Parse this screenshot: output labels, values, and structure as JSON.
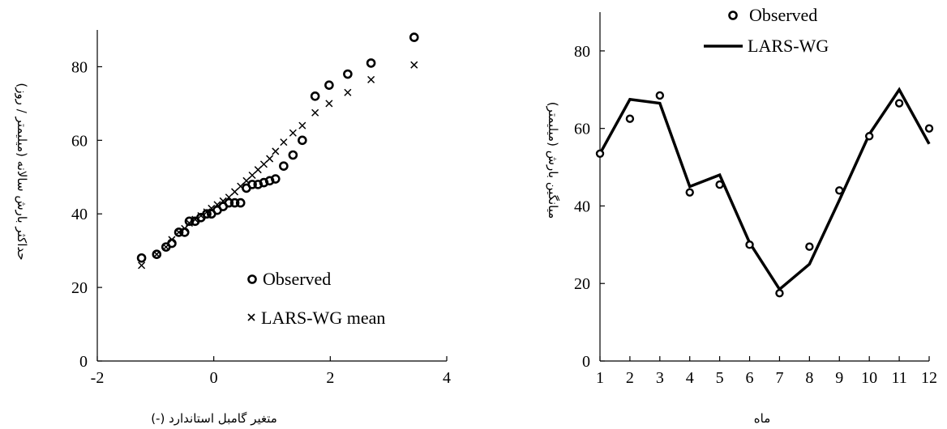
{
  "chart_data": [
    {
      "type": "scatter",
      "title": "",
      "xlabel": "متغیر گامبل استاندارد (-)",
      "ylabel": "حداکثر بارش سالانه (میلیمتر / روز)",
      "xlim": [
        -2,
        4
      ],
      "ylim": [
        0,
        90
      ],
      "xticks": [
        -2,
        0,
        2,
        4
      ],
      "yticks": [
        0,
        20,
        40,
        60,
        80
      ],
      "xtick_labels": [
        "-2",
        "0",
        "2",
        "4"
      ],
      "ytick_labels": [
        "0",
        "20",
        "40",
        "60",
        "80"
      ],
      "grid": false,
      "legend_position": "bottom-right",
      "series": [
        {
          "name": "Observed",
          "marker": "circle",
          "x": [
            -1.24,
            -0.98,
            -0.82,
            -0.72,
            -0.6,
            -0.5,
            -0.42,
            -0.32,
            -0.22,
            -0.12,
            -0.04,
            0.06,
            0.16,
            0.26,
            0.36,
            0.46,
            0.56,
            0.66,
            0.76,
            0.86,
            0.96,
            1.06,
            1.2,
            1.36,
            1.52,
            1.74,
            1.98,
            2.3,
            2.7,
            3.44
          ],
          "y": [
            28,
            29,
            31,
            32,
            35,
            35,
            38,
            38,
            39,
            40,
            40,
            41,
            42,
            43,
            43,
            43,
            47,
            48,
            48,
            48.5,
            49,
            49.5,
            53,
            56,
            60,
            72,
            75,
            78,
            81,
            88
          ]
        },
        {
          "name": "LARS-WG mean",
          "marker": "x",
          "x": [
            -1.24,
            -0.98,
            -0.82,
            -0.72,
            -0.6,
            -0.5,
            -0.42,
            -0.32,
            -0.22,
            -0.12,
            -0.04,
            0.06,
            0.16,
            0.26,
            0.36,
            0.46,
            0.56,
            0.66,
            0.76,
            0.86,
            0.96,
            1.06,
            1.2,
            1.36,
            1.52,
            1.74,
            1.98,
            2.3,
            2.7,
            3.44
          ],
          "y": [
            26,
            29,
            31,
            33,
            35,
            36,
            37.5,
            38.5,
            39.5,
            40.5,
            41.5,
            42.5,
            43.5,
            44.5,
            46,
            47.5,
            49,
            50.5,
            52,
            53.5,
            55,
            57,
            59.5,
            62,
            64,
            67.5,
            70,
            73,
            76.5,
            80.5
          ]
        }
      ]
    },
    {
      "type": "line",
      "title": "",
      "xlabel": "ماه",
      "ylabel": "میانگین بارش (میلیمتر)",
      "xlim": [
        1,
        12
      ],
      "ylim": [
        0,
        90
      ],
      "xticks": [
        1,
        2,
        3,
        4,
        5,
        6,
        7,
        8,
        9,
        10,
        11,
        12
      ],
      "yticks": [
        0,
        20,
        40,
        60,
        80
      ],
      "xtick_labels": [
        "1",
        "2",
        "3",
        "4",
        "5",
        "6",
        "7",
        "8",
        "9",
        "10",
        "11",
        "12"
      ],
      "ytick_labels": [
        "0",
        "20",
        "40",
        "60",
        "80"
      ],
      "grid": false,
      "legend_position": "top-left",
      "categories": [
        1,
        2,
        3,
        4,
        5,
        6,
        7,
        8,
        9,
        10,
        11,
        12
      ],
      "series": [
        {
          "name": "Observed",
          "marker": "circle",
          "values": [
            53.5,
            62.5,
            68.5,
            43.5,
            45.5,
            30,
            17.5,
            29.5,
            44,
            58,
            66.5,
            60
          ]
        },
        {
          "name": "LARS-WG",
          "marker": "line",
          "values": [
            53.5,
            67.5,
            66.5,
            45,
            48,
            30.5,
            18.5,
            25,
            41.5,
            58.5,
            70,
            56
          ]
        }
      ]
    }
  ]
}
